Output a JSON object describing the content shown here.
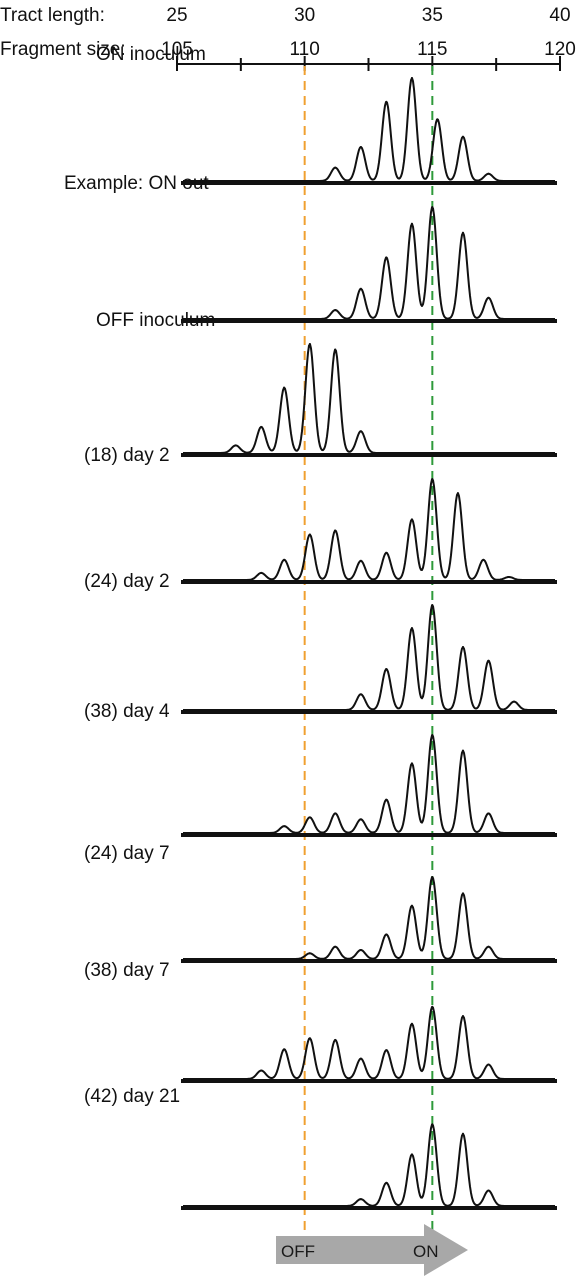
{
  "chart_data": {
    "type": "line",
    "tract_axis": {
      "label": "Tract length:",
      "ticks": [
        25,
        30,
        35,
        40
      ]
    },
    "fragment_axis": {
      "label": "Fragment size:",
      "ticks": [
        105,
        110,
        115,
        120
      ],
      "range": [
        105,
        120
      ]
    },
    "reference_lines": [
      {
        "fragment_size": 110,
        "color": "#f0a030",
        "label": "OFF"
      },
      {
        "fragment_size": 115,
        "color": "#2e9a3a",
        "label": "ON"
      }
    ],
    "arrow": {
      "from_label": "OFF",
      "to_label": "ON",
      "color": "#a8a8a8"
    },
    "panels": [
      {
        "label": "ON inoculum",
        "peaks": [
          [
            111.2,
            0.13
          ],
          [
            112.2,
            0.33
          ],
          [
            113.2,
            0.77
          ],
          [
            114.2,
            1.0
          ],
          [
            115.2,
            0.6
          ],
          [
            116.2,
            0.43
          ],
          [
            117.2,
            0.07
          ]
        ]
      },
      {
        "label": "Example: ON out",
        "peaks": [
          [
            111.2,
            0.08
          ],
          [
            112.2,
            0.27
          ],
          [
            113.2,
            0.55
          ],
          [
            114.2,
            0.85
          ],
          [
            115.0,
            1.0
          ],
          [
            116.2,
            0.77
          ],
          [
            117.2,
            0.19
          ]
        ]
      },
      {
        "label": "OFF inoculum",
        "peaks": [
          [
            107.3,
            0.07
          ],
          [
            108.3,
            0.24
          ],
          [
            109.2,
            0.6
          ],
          [
            110.2,
            1.0
          ],
          [
            111.2,
            0.95
          ],
          [
            112.2,
            0.2
          ]
        ]
      },
      {
        "label": "(18) day 2",
        "peaks": [
          [
            108.3,
            0.07
          ],
          [
            109.2,
            0.2
          ],
          [
            110.2,
            0.45
          ],
          [
            111.2,
            0.49
          ],
          [
            112.2,
            0.19
          ],
          [
            113.2,
            0.27
          ],
          [
            114.2,
            0.6
          ],
          [
            115.0,
            1.0
          ],
          [
            116.0,
            0.86
          ],
          [
            117.0,
            0.2
          ],
          [
            118.0,
            0.03
          ]
        ]
      },
      {
        "label": "(24) day 2",
        "peaks": [
          [
            112.2,
            0.15
          ],
          [
            113.2,
            0.39
          ],
          [
            114.2,
            0.78
          ],
          [
            115.0,
            1.0
          ],
          [
            116.2,
            0.6
          ],
          [
            117.2,
            0.47
          ],
          [
            118.2,
            0.08
          ]
        ]
      },
      {
        "label": "(38) day 4",
        "peaks": [
          [
            109.2,
            0.07
          ],
          [
            110.2,
            0.16
          ],
          [
            111.2,
            0.2
          ],
          [
            112.2,
            0.14
          ],
          [
            113.2,
            0.34
          ],
          [
            114.2,
            0.71
          ],
          [
            115.0,
            1.0
          ],
          [
            116.2,
            0.84
          ],
          [
            117.2,
            0.2
          ]
        ]
      },
      {
        "label": "(24) day 7",
        "peaks": [
          [
            110.2,
            0.07
          ],
          [
            111.2,
            0.15
          ],
          [
            112.2,
            0.11
          ],
          [
            113.2,
            0.3
          ],
          [
            114.2,
            0.65
          ],
          [
            115.0,
            1.0
          ],
          [
            116.2,
            0.8
          ],
          [
            117.2,
            0.15
          ]
        ]
      },
      {
        "label": "(38) day 7",
        "peaks": [
          [
            108.3,
            0.1
          ],
          [
            109.2,
            0.35
          ],
          [
            110.2,
            0.48
          ],
          [
            111.2,
            0.46
          ],
          [
            112.2,
            0.24
          ],
          [
            113.2,
            0.34
          ],
          [
            114.2,
            0.65
          ],
          [
            115.0,
            0.85
          ],
          [
            116.2,
            0.74
          ],
          [
            117.2,
            0.17
          ]
        ]
      },
      {
        "label": "(42) day 21",
        "peaks": [
          [
            112.2,
            0.08
          ],
          [
            113.2,
            0.27
          ],
          [
            114.2,
            0.6
          ],
          [
            115.0,
            0.95
          ],
          [
            116.2,
            0.84
          ],
          [
            117.2,
            0.18
          ]
        ]
      }
    ]
  }
}
